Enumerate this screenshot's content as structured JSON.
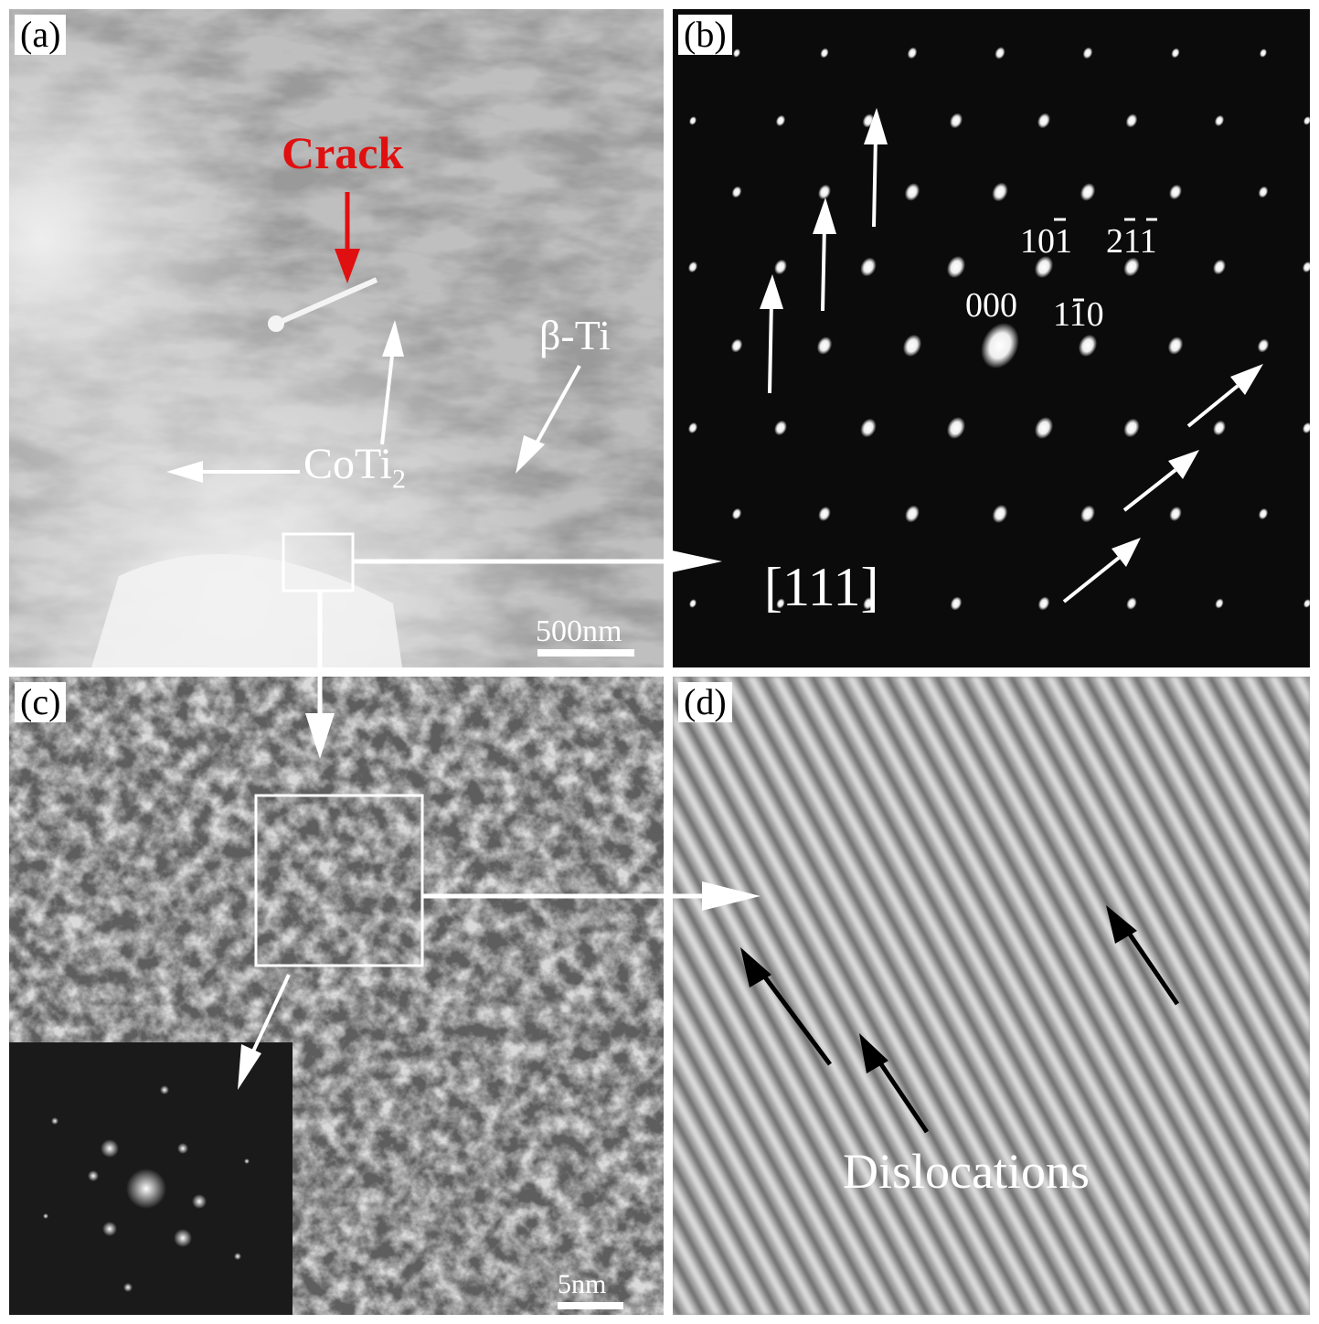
{
  "panels": {
    "a": {
      "label": "(a)",
      "crack_label": "Crack",
      "beta_ti_label": "β-Ti",
      "coti2_label": "CoTi",
      "coti2_sub": "2",
      "scale_bar": "500nm"
    },
    "b": {
      "label": "(b)",
      "zone_axis": "[111]",
      "spot_000": "000",
      "spot_101": "101",
      "spot_110": "110",
      "spot_211": "211"
    },
    "c": {
      "label": "(c)",
      "scale_bar": "5nm"
    },
    "d": {
      "label": "(d)",
      "dislocations_label": "Dislocations"
    }
  },
  "colors": {
    "crack": "#e01010",
    "annotation": "#ffffff",
    "dislocation_arrow": "#000000"
  }
}
